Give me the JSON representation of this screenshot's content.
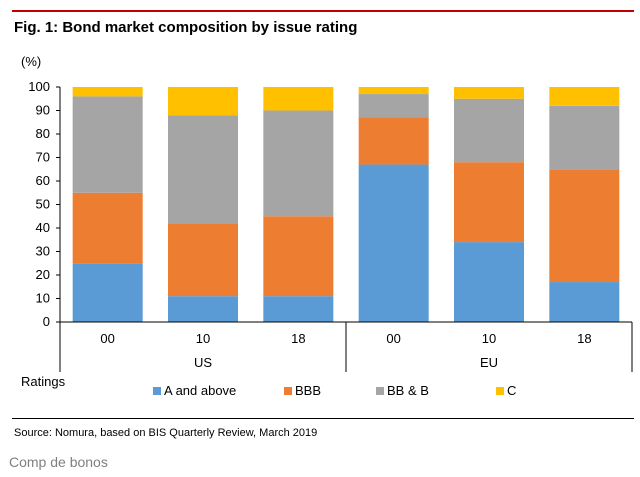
{
  "figure": {
    "title": "Fig. 1: Bond market composition by issue rating",
    "source": "Source: Nomura, based on BIS Quarterly Review, March 2019",
    "caption": "Comp de bonos"
  },
  "chart_data": {
    "type": "bar",
    "stacked": true,
    "title": "Fig. 1: Bond market composition by issue rating",
    "ylabel": "(%)",
    "xlabel": "",
    "legend_title": "Ratings",
    "legend_position": "bottom",
    "ylim": [
      0,
      100
    ],
    "yticks": [
      0,
      10,
      20,
      30,
      40,
      50,
      60,
      70,
      80,
      90,
      100
    ],
    "grid": false,
    "categories": [
      "00",
      "10",
      "18",
      "00",
      "10",
      "18"
    ],
    "groups": [
      {
        "name": "US",
        "categories": [
          "00",
          "10",
          "18"
        ]
      },
      {
        "name": "EU",
        "categories": [
          "00",
          "10",
          "18"
        ]
      }
    ],
    "series": [
      {
        "name": "A and above",
        "color": "#5b9bd5",
        "values": [
          25,
          11,
          11,
          67,
          34,
          17
        ]
      },
      {
        "name": "BBB",
        "color": "#ed7d31",
        "values": [
          30,
          31,
          34,
          20,
          34,
          48
        ]
      },
      {
        "name": "BB & B",
        "color": "#a5a5a5",
        "values": [
          41,
          46,
          45,
          10,
          27,
          27
        ]
      },
      {
        "name": "C",
        "color": "#ffc000",
        "values": [
          4,
          12,
          10,
          3,
          5,
          8
        ]
      }
    ]
  }
}
